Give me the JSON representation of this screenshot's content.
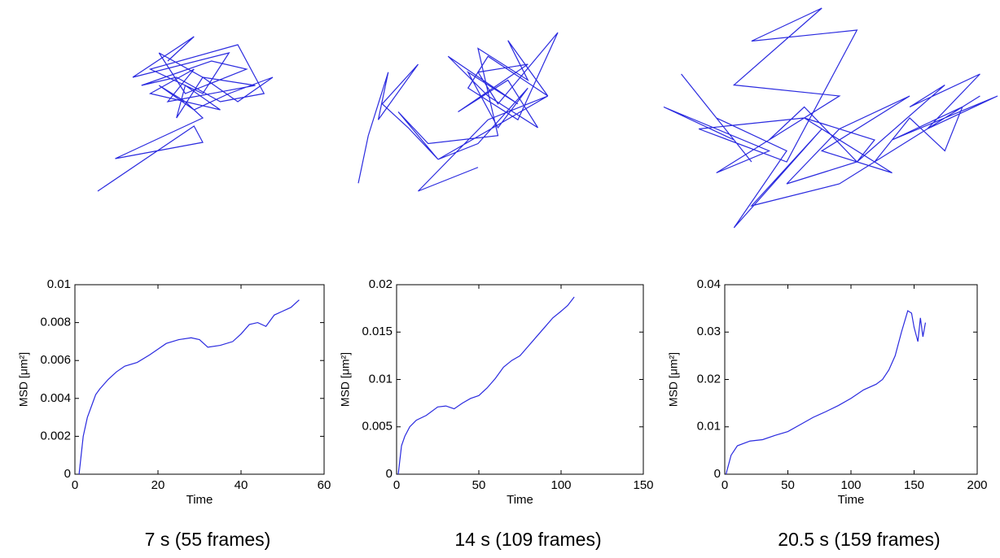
{
  "chart_data": [
    {
      "type": "trajectory",
      "color": "#2a2adf",
      "x": [
        40,
        55,
        20,
        75,
        60,
        30,
        80,
        95,
        70,
        45,
        25,
        65,
        85,
        50,
        35,
        60,
        90,
        40,
        55,
        30,
        70,
        50,
        45,
        60,
        80,
        100,
        75,
        55,
        35,
        50,
        60,
        40,
        10,
        60,
        55,
        0
      ],
      "y": [
        80,
        95,
        70,
        85,
        60,
        75,
        90,
        60,
        55,
        70,
        65,
        80,
        75,
        60,
        85,
        70,
        65,
        55,
        75,
        60,
        50,
        65,
        45,
        70,
        55,
        70,
        60,
        50,
        65,
        55,
        45,
        35,
        20,
        30,
        40,
        0
      ]
    },
    {
      "type": "trajectory",
      "color": "#2a2adf",
      "x": [
        0,
        5,
        15,
        10,
        30,
        12,
        25,
        40,
        20,
        35,
        70,
        60,
        85,
        75,
        95,
        65,
        55,
        80,
        100,
        70,
        60,
        85,
        50,
        75,
        90,
        65,
        45,
        80,
        55,
        70,
        85,
        60,
        40,
        95,
        65,
        30,
        60
      ],
      "y": [
        5,
        35,
        75,
        45,
        80,
        55,
        40,
        20,
        50,
        30,
        35,
        90,
        70,
        95,
        60,
        85,
        65,
        45,
        100,
        55,
        75,
        80,
        50,
        70,
        40,
        60,
        85,
        55,
        75,
        40,
        65,
        30,
        20,
        60,
        45,
        0,
        15
      ]
    },
    {
      "type": "trajectory",
      "color": "#2a2adf",
      "x": [
        30,
        10,
        25,
        5,
        35,
        20,
        45,
        15,
        40,
        60,
        30,
        50,
        25,
        55,
        35,
        45,
        60,
        40,
        55,
        75,
        50,
        70,
        45,
        65,
        60,
        85,
        75,
        95,
        80,
        100,
        70,
        90,
        85,
        75,
        65,
        95,
        55,
        30,
        50,
        25,
        40,
        20
      ],
      "y": [
        30,
        70,
        40,
        55,
        35,
        25,
        50,
        45,
        30,
        90,
        85,
        100,
        65,
        60,
        40,
        55,
        30,
        20,
        45,
        60,
        35,
        25,
        50,
        40,
        30,
        65,
        55,
        70,
        45,
        60,
        40,
        55,
        35,
        50,
        30,
        60,
        20,
        10,
        45,
        0,
        35,
        50
      ]
    },
    {
      "type": "line",
      "color": "#2a2adf",
      "xlabel": "Time",
      "ylabel": "MSD [μm²]",
      "caption": "7 s (55 frames)",
      "xlim": [
        0,
        60
      ],
      "xticks": [
        0,
        20,
        40,
        60
      ],
      "ylim": [
        0,
        0.01
      ],
      "yticks": [
        0,
        0.002,
        0.004,
        0.006,
        0.008,
        0.01
      ],
      "x": [
        1,
        2,
        3,
        4,
        5,
        6,
        8,
        10,
        12,
        15,
        18,
        20,
        22,
        25,
        28,
        30,
        32,
        35,
        38,
        40,
        42,
        44,
        46,
        48,
        50,
        52,
        54
      ],
      "values": [
        0,
        0.002,
        0.003,
        0.0036,
        0.0042,
        0.0045,
        0.005,
        0.0054,
        0.0057,
        0.0059,
        0.0063,
        0.0066,
        0.0069,
        0.0071,
        0.0072,
        0.0071,
        0.0067,
        0.0068,
        0.007,
        0.0074,
        0.0079,
        0.008,
        0.0078,
        0.0084,
        0.0086,
        0.0088,
        0.0092
      ]
    },
    {
      "type": "line",
      "color": "#2a2adf",
      "xlabel": "Time",
      "ylabel": "MSD [μm²]",
      "caption": "14 s (109 frames)",
      "xlim": [
        0,
        150
      ],
      "xticks": [
        0,
        50,
        100,
        150
      ],
      "ylim": [
        0,
        0.02
      ],
      "yticks": [
        0,
        0.005,
        0.01,
        0.015,
        0.02
      ],
      "x": [
        1,
        3,
        5,
        8,
        12,
        18,
        25,
        30,
        35,
        40,
        45,
        50,
        55,
        60,
        65,
        70,
        75,
        80,
        85,
        90,
        95,
        100,
        104,
        108
      ],
      "values": [
        0,
        0.003,
        0.004,
        0.005,
        0.0057,
        0.0062,
        0.0071,
        0.0072,
        0.0069,
        0.0075,
        0.008,
        0.0083,
        0.0091,
        0.0101,
        0.0113,
        0.012,
        0.0125,
        0.0135,
        0.0145,
        0.0155,
        0.0165,
        0.0172,
        0.0178,
        0.0187
      ]
    },
    {
      "type": "line",
      "color": "#2a2adf",
      "xlabel": "Time",
      "ylabel": "MSD [μm²]",
      "caption": "20.5 s (159 frames)",
      "xlim": [
        0,
        200
      ],
      "xticks": [
        0,
        50,
        100,
        150,
        200
      ],
      "ylim": [
        0,
        0.04
      ],
      "yticks": [
        0,
        0.01,
        0.02,
        0.03,
        0.04
      ],
      "x": [
        1,
        5,
        10,
        20,
        30,
        40,
        50,
        60,
        70,
        80,
        90,
        100,
        110,
        120,
        125,
        130,
        135,
        140,
        145,
        148,
        150,
        153,
        155,
        157,
        159
      ],
      "values": [
        0,
        0.004,
        0.006,
        0.007,
        0.0073,
        0.0082,
        0.009,
        0.0105,
        0.012,
        0.0132,
        0.0145,
        0.016,
        0.0178,
        0.019,
        0.02,
        0.022,
        0.025,
        0.03,
        0.0345,
        0.034,
        0.031,
        0.028,
        0.033,
        0.029,
        0.032
      ]
    }
  ]
}
